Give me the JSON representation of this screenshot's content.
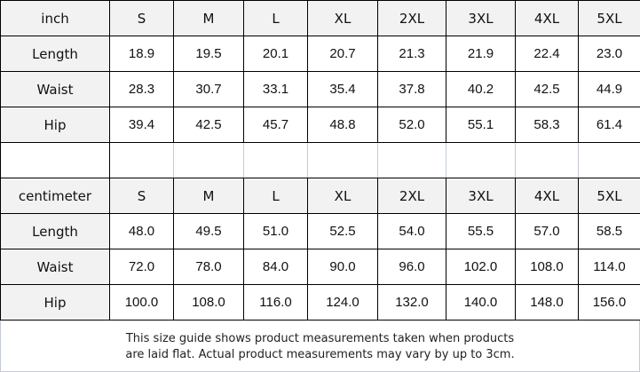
{
  "sizes": [
    "S",
    "M",
    "L",
    "XL",
    "2XL",
    "3XL",
    "4XL",
    "5XL"
  ],
  "inch": {
    "unit_label": "inch",
    "rows": [
      {
        "label": "Length",
        "values": [
          "18.9",
          "19.5",
          "20.1",
          "20.7",
          "21.3",
          "21.9",
          "22.4",
          "23.0"
        ]
      },
      {
        "label": "Waist",
        "values": [
          "28.3",
          "30.7",
          "33.1",
          "35.4",
          "37.8",
          "40.2",
          "42.5",
          "44.9"
        ]
      },
      {
        "label": "Hip",
        "values": [
          "39.4",
          "42.5",
          "45.7",
          "48.8",
          "52.0",
          "55.1",
          "58.3",
          "61.4"
        ]
      }
    ]
  },
  "centimeter": {
    "unit_label": "centimeter",
    "rows": [
      {
        "label": "Length",
        "values": [
          "48.0",
          "49.5",
          "51.0",
          "52.5",
          "54.0",
          "55.5",
          "57.0",
          "58.5"
        ]
      },
      {
        "label": "Waist",
        "values": [
          "72.0",
          "78.0",
          "84.0",
          "90.0",
          "96.0",
          "102.0",
          "108.0",
          "114.0"
        ]
      },
      {
        "label": "Hip",
        "values": [
          "100.0",
          "108.0",
          "116.0",
          "124.0",
          "132.0",
          "140.0",
          "148.0",
          "156.0"
        ]
      }
    ]
  },
  "note": {
    "line1": "This size guide shows product measurements taken when products",
    "line2": "are laid flat. Actual product measurements may vary by up to 3cm."
  }
}
